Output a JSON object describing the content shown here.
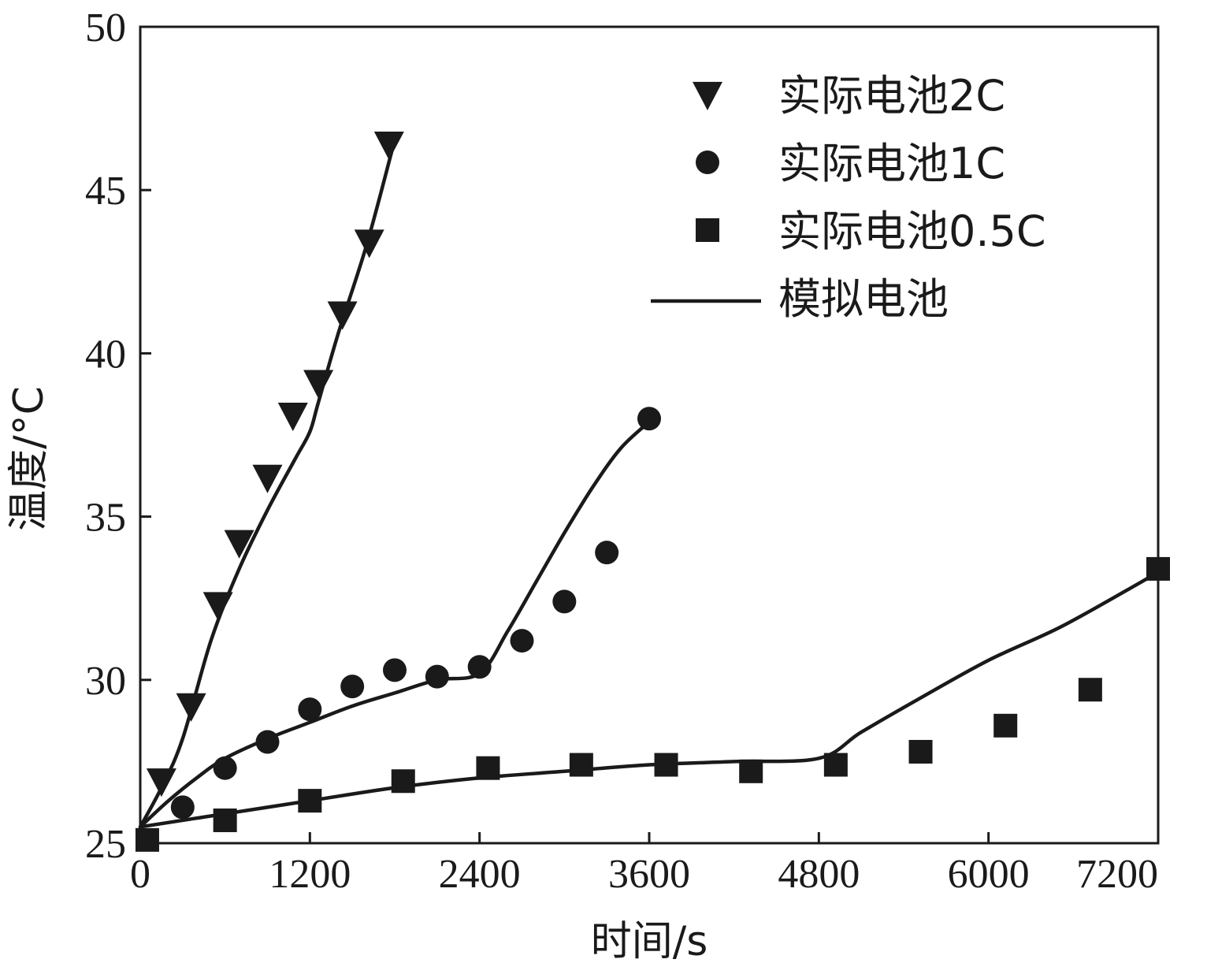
{
  "chart_data": {
    "type": "scatter",
    "title": "",
    "xlabel": "时间/s",
    "ylabel": "温度/°C",
    "xlim": [
      0,
      7200
    ],
    "ylim": [
      25,
      50
    ],
    "xticks": [
      0,
      1200,
      2400,
      3600,
      4800,
      6000,
      7200
    ],
    "yticks": [
      25,
      30,
      35,
      40,
      45,
      50
    ],
    "x_tick_labels": [
      "0",
      "1200",
      "2400",
      "3600",
      "4800",
      "6000",
      "7200"
    ],
    "y_tick_labels": [
      "25",
      "30",
      "35",
      "40",
      "45",
      "50"
    ],
    "legend_position": "top-right",
    "series": [
      {
        "name": "实际电池2C",
        "marker": "triangle-down",
        "points": [
          [
            150,
            26.9
          ],
          [
            360,
            29.2
          ],
          [
            550,
            32.3
          ],
          [
            700,
            34.2
          ],
          [
            900,
            36.2
          ],
          [
            1080,
            38.1
          ],
          [
            1260,
            39.1
          ],
          [
            1430,
            41.2
          ],
          [
            1620,
            43.4
          ],
          [
            1760,
            46.4
          ]
        ]
      },
      {
        "name": "实际电池1C",
        "marker": "circle",
        "points": [
          [
            300,
            26.1
          ],
          [
            600,
            27.3
          ],
          [
            900,
            28.1
          ],
          [
            1200,
            29.1
          ],
          [
            1500,
            29.8
          ],
          [
            1800,
            30.3
          ],
          [
            2100,
            30.1
          ],
          [
            2400,
            30.4
          ],
          [
            2700,
            31.2
          ],
          [
            3000,
            32.4
          ],
          [
            3300,
            33.9
          ],
          [
            3600,
            38.0
          ]
        ]
      },
      {
        "name": "实际电池0.5C",
        "marker": "square",
        "points": [
          [
            50,
            25.1
          ],
          [
            600,
            25.7
          ],
          [
            1200,
            26.3
          ],
          [
            1860,
            26.9
          ],
          [
            2460,
            27.3
          ],
          [
            3120,
            27.4
          ],
          [
            3720,
            27.4
          ],
          [
            4320,
            27.2
          ],
          [
            4920,
            27.4
          ],
          [
            5520,
            27.8
          ],
          [
            6120,
            28.6
          ],
          [
            6720,
            29.7
          ],
          [
            7200,
            33.4
          ]
        ]
      },
      {
        "name": "模拟电池",
        "marker": "line",
        "lines": [
          {
            "for": "2C",
            "points": [
              [
                0,
                25.5
              ],
              [
                150,
                26.7
              ],
              [
                300,
                28.2
              ],
              [
                500,
                31.2
              ],
              [
                700,
                33.4
              ],
              [
                900,
                35.2
              ],
              [
                1100,
                36.8
              ],
              [
                1200,
                37.6
              ],
              [
                1260,
                38.5
              ],
              [
                1400,
                40.6
              ],
              [
                1600,
                43.3
              ],
              [
                1780,
                46.2
              ]
            ]
          },
          {
            "for": "1C",
            "points": [
              [
                0,
                25.5
              ],
              [
                200,
                26.3
              ],
              [
                400,
                27.0
              ],
              [
                600,
                27.6
              ],
              [
                900,
                28.2
              ],
              [
                1200,
                28.7
              ],
              [
                1500,
                29.2
              ],
              [
                1800,
                29.6
              ],
              [
                2100,
                30.0
              ],
              [
                2400,
                30.2
              ],
              [
                2600,
                31.5
              ],
              [
                2800,
                33.0
              ],
              [
                3000,
                34.5
              ],
              [
                3200,
                35.9
              ],
              [
                3400,
                37.1
              ],
              [
                3600,
                37.9
              ]
            ]
          },
          {
            "for": "0.5C",
            "points": [
              [
                0,
                25.5
              ],
              [
                600,
                25.9
              ],
              [
                1200,
                26.3
              ],
              [
                1800,
                26.7
              ],
              [
                2400,
                27.0
              ],
              [
                3000,
                27.2
              ],
              [
                3600,
                27.4
              ],
              [
                4200,
                27.5
              ],
              [
                4800,
                27.6
              ],
              [
                5100,
                28.4
              ],
              [
                5500,
                29.4
              ],
              [
                6000,
                30.6
              ],
              [
                6500,
                31.6
              ],
              [
                7000,
                32.8
              ],
              [
                7200,
                33.3
              ]
            ]
          }
        ]
      }
    ]
  }
}
